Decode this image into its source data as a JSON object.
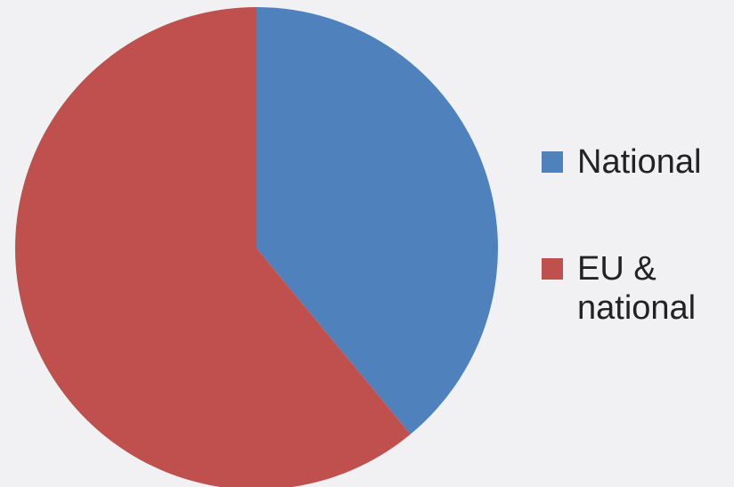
{
  "chart_data": {
    "type": "pie",
    "title": "",
    "series": [
      {
        "values": [
          {
            "label": "National",
            "value": 39,
            "color": "#4f81bd"
          },
          {
            "label": "EU & national",
            "value": 61,
            "color": "#c0504d"
          }
        ]
      }
    ],
    "legend": {
      "placement": "right",
      "items": [
        {
          "label": "National",
          "color": "#4f81bd"
        },
        {
          "label": "EU & national",
          "color": "#c0504d"
        }
      ]
    },
    "start_angle_deg": 0,
    "direction": "clockwise"
  }
}
